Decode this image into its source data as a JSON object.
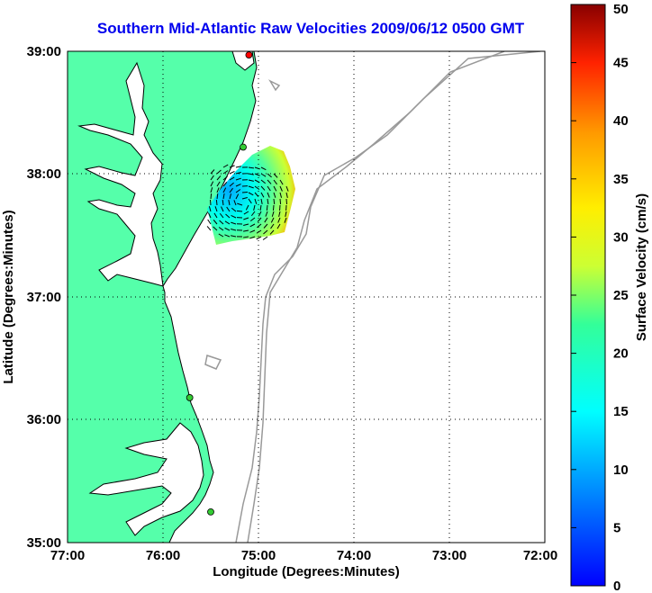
{
  "title": "Southern Mid-Atlantic Raw Velocities 2009/06/12 0500 GMT",
  "x_axis": {
    "label": "Longitude (Degrees:Minutes)",
    "ticks": [
      "77:00",
      "76:00",
      "75:00",
      "74:00",
      "73:00",
      "72:00"
    ]
  },
  "y_axis": {
    "label": "Latitude (Degrees:Minutes)",
    "ticks": [
      "39:00",
      "38:00",
      "37:00",
      "36:00",
      "35:00"
    ]
  },
  "colorbar": {
    "label": "Surface Velocity (cm/s)",
    "ticks": [
      "50",
      "45",
      "40",
      "35",
      "30",
      "25",
      "20",
      "15",
      "10",
      "5",
      "0"
    ],
    "min": 0,
    "max": 50,
    "colormap": "jet"
  },
  "map": {
    "land_color": "#55ffaa",
    "coastline_color": "#000000",
    "bathymetry_color": "#999999",
    "grid": "dotted",
    "extent": {
      "lon_min": -77,
      "lon_max": -72,
      "lat_min": 35,
      "lat_max": 39
    }
  },
  "stations": [
    {
      "lon": -75.1,
      "lat": 38.97,
      "color": "#ff0000"
    },
    {
      "lon": -75.16,
      "lat": 38.22,
      "color": "#33cc33"
    },
    {
      "lon": -75.72,
      "lat": 36.18,
      "color": "#33cc33"
    },
    {
      "lon": -75.5,
      "lat": 35.25,
      "color": "#33cc33"
    }
  ]
}
